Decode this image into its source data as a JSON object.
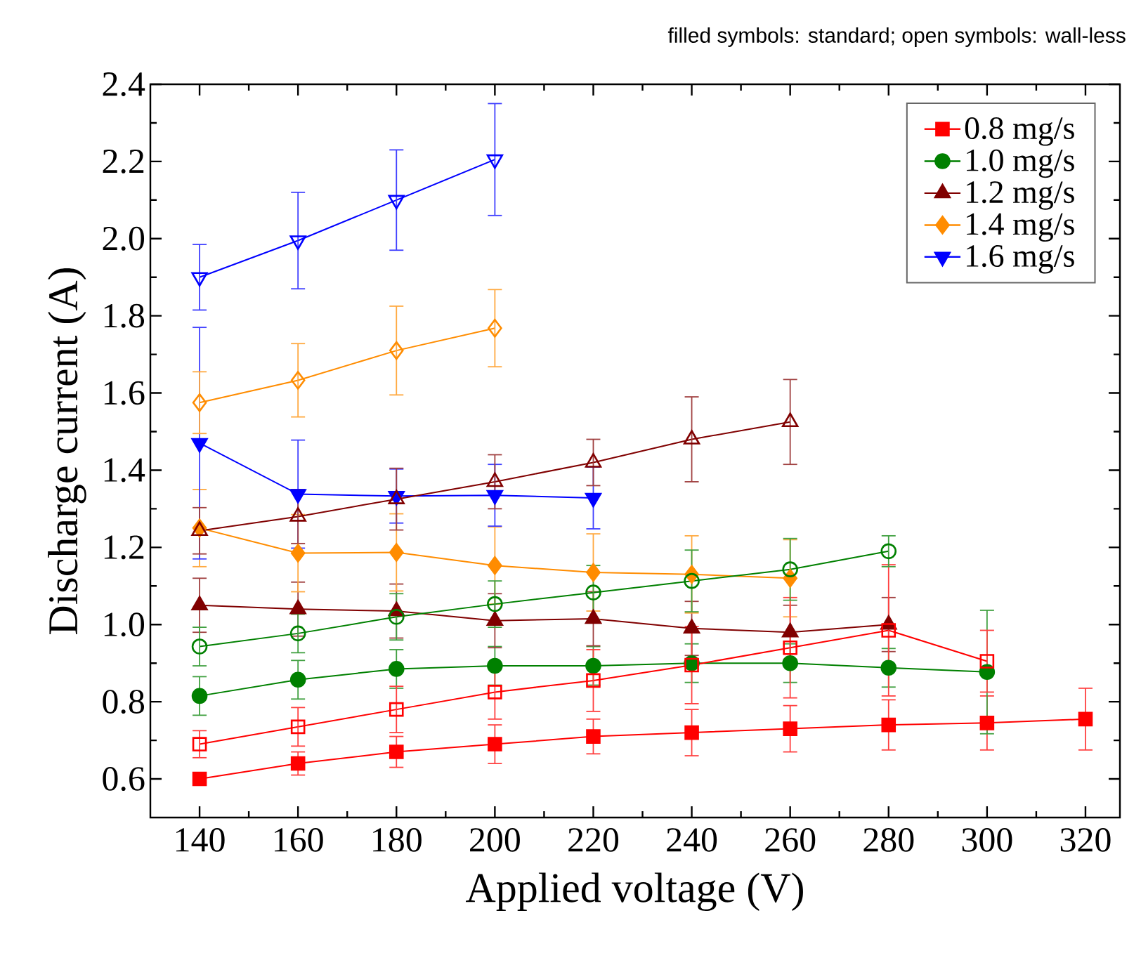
{
  "chart_data": {
    "type": "line",
    "xlabel": "Applied voltage (V)",
    "ylabel": "Discharge current (A)",
    "annotations": [
      "filled symbols: standard;   open symbols: wall-less"
    ],
    "x": [
      140,
      160,
      180,
      200,
      220,
      240,
      260,
      280,
      300,
      320
    ],
    "xlim": [
      130,
      327
    ],
    "xticks": [
      140,
      160,
      180,
      200,
      220,
      240,
      260,
      280,
      300,
      320
    ],
    "ylim": [
      0.5,
      2.4
    ],
    "yticks": [
      0.6,
      0.8,
      {
        "value": 1.0,
        "label": "1.0"
      },
      1.2,
      1.4,
      1.6,
      1.8,
      {
        "value": 2.0,
        "label": "2.0"
      },
      2.2,
      2.4
    ],
    "legend": "top right",
    "grid": false,
    "series": [
      {
        "name": "0.8 mg/s",
        "color": "#ff0000",
        "marker": "square",
        "values": [
          0.6,
          0.64,
          0.67,
          0.69,
          0.71,
          0.72,
          0.73,
          0.74,
          0.745,
          0.755
        ],
        "errors": [
          0.01,
          0.03,
          0.04,
          0.05,
          0.045,
          0.06,
          0.06,
          0.065,
          0.07,
          0.08
        ]
      },
      {
        "name": "1.0 mg/s",
        "color": "#008000",
        "marker": "circle",
        "values": [
          0.815,
          0.857,
          0.885,
          0.893,
          0.893,
          0.9,
          0.9,
          0.888,
          0.877,
          null
        ],
        "errors": [
          0.05,
          0.05,
          0.05,
          0.05,
          0.05,
          0.05,
          0.05,
          0.05,
          0.16,
          null
        ]
      },
      {
        "name": "1.2 mg/s",
        "color": "#800000",
        "marker": "triangle",
        "values": [
          1.05,
          1.04,
          1.035,
          1.01,
          1.015,
          0.99,
          0.98,
          1.0,
          null,
          null
        ],
        "errors": [
          0.07,
          0.07,
          0.07,
          0.07,
          0.07,
          0.07,
          0.07,
          0.07,
          null,
          null
        ]
      },
      {
        "name": "1.4 mg/s",
        "color": "#ff8c00",
        "marker": "diamond",
        "values": [
          1.25,
          1.185,
          1.187,
          1.153,
          1.135,
          1.13,
          1.12,
          null,
          null,
          null
        ],
        "errors": [
          0.1,
          0.1,
          0.1,
          0.1,
          0.1,
          0.1,
          0.1,
          null,
          null,
          null
        ]
      },
      {
        "name": "1.6 mg/s",
        "color": "#0000ff",
        "marker": "triangle-down",
        "values": [
          1.47,
          1.338,
          1.333,
          1.335,
          1.328,
          null,
          null,
          null,
          null,
          null
        ],
        "errors": [
          0.3,
          0.14,
          0.07,
          0.08,
          0.08,
          null,
          null,
          null,
          null,
          null
        ]
      },
      {
        "color": "#ff0000",
        "marker": "square",
        "values": [
          0.69,
          0.735,
          0.78,
          0.825,
          0.855,
          0.895,
          0.94,
          0.985,
          0.905,
          null
        ],
        "errors": [
          0.035,
          0.05,
          0.06,
          0.07,
          0.08,
          0.1,
          0.13,
          0.17,
          0.08,
          null
        ]
      },
      {
        "color": "#008000",
        "marker": "circle",
        "values": [
          0.943,
          0.977,
          1.02,
          1.053,
          1.083,
          1.113,
          1.143,
          1.19,
          null,
          null
        ],
        "errors": [
          0.05,
          0.05,
          0.06,
          0.06,
          0.07,
          0.08,
          0.08,
          0.04,
          null,
          null
        ]
      },
      {
        "color": "#800000",
        "marker": "triangle",
        "values": [
          1.243,
          1.28,
          1.325,
          1.37,
          1.42,
          1.48,
          1.525,
          null,
          null,
          null
        ],
        "errors": [
          0.06,
          0.07,
          0.08,
          0.07,
          0.06,
          0.11,
          0.11,
          null,
          null,
          null
        ]
      },
      {
        "color": "#ff8c00",
        "marker": "diamond",
        "values": [
          1.575,
          1.633,
          1.71,
          1.768,
          null,
          null,
          null,
          null,
          null,
          null
        ],
        "errors": [
          0.08,
          0.095,
          0.115,
          0.1,
          null,
          null,
          null,
          null,
          null,
          null
        ]
      },
      {
        "color": "#0000ff",
        "marker": "triangle-down",
        "values": [
          1.9,
          1.995,
          2.1,
          2.205,
          null,
          null,
          null,
          null,
          null,
          null
        ],
        "errors": [
          0.085,
          0.125,
          0.13,
          0.145,
          null,
          null,
          null,
          null,
          null,
          null
        ]
      }
    ]
  }
}
